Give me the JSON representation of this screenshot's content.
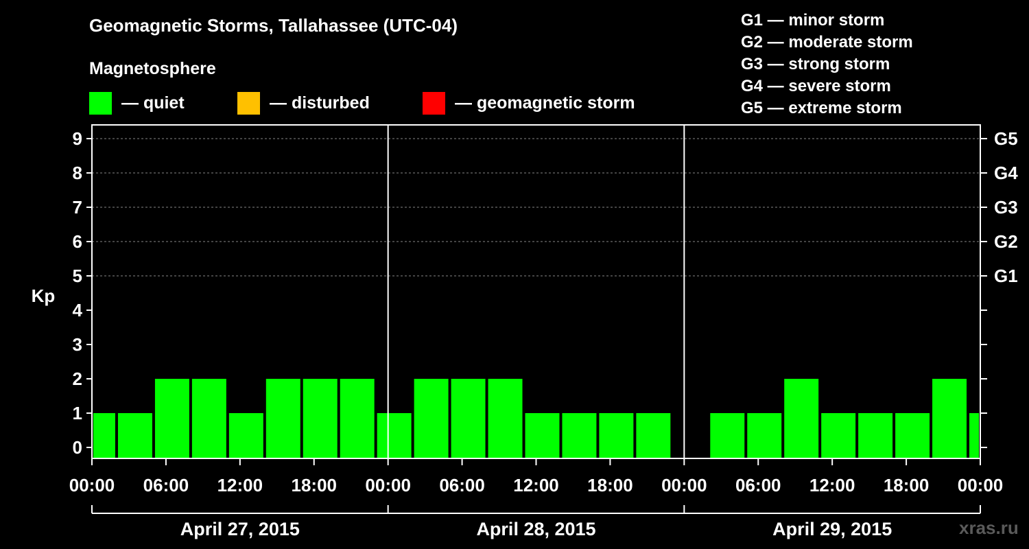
{
  "title": "Geomagnetic Storms, Tallahassee (UTC-04)",
  "subtitle": "Magnetosphere",
  "legend": [
    {
      "label": "— quiet",
      "color": "#00ff00"
    },
    {
      "label": "— disturbed",
      "color": "#ffc000"
    },
    {
      "label": "— geomagnetic storm",
      "color": "#ff0000"
    }
  ],
  "storm_scale": [
    "G1 — minor storm",
    "G2 — moderate storm",
    "G3 — strong storm",
    "G4 — severe storm",
    "G5 — extreme storm"
  ],
  "watermark": "xras.ru",
  "chart_data": {
    "type": "bar",
    "ylabel": "Kp",
    "ylim": [
      0,
      9
    ],
    "yticks": [
      "0",
      "1",
      "2",
      "3",
      "4",
      "5",
      "6",
      "7",
      "8",
      "9"
    ],
    "right_ticks": [
      {
        "kp": 5,
        "label": "G1"
      },
      {
        "kp": 6,
        "label": "G2"
      },
      {
        "kp": 7,
        "label": "G3"
      },
      {
        "kp": 8,
        "label": "G4"
      },
      {
        "kp": 9,
        "label": "G5"
      }
    ],
    "grid_levels": [
      5,
      6,
      7,
      8,
      9
    ],
    "xlim_hours": [
      0,
      72
    ],
    "xticks": [
      {
        "hour": 0,
        "label": "00:00"
      },
      {
        "hour": 6,
        "label": "06:00"
      },
      {
        "hour": 12,
        "label": "12:00"
      },
      {
        "hour": 18,
        "label": "18:00"
      },
      {
        "hour": 24,
        "label": "00:00"
      },
      {
        "hour": 30,
        "label": "06:00"
      },
      {
        "hour": 36,
        "label": "12:00"
      },
      {
        "hour": 42,
        "label": "18:00"
      },
      {
        "hour": 48,
        "label": "00:00"
      },
      {
        "hour": 54,
        "label": "06:00"
      },
      {
        "hour": 60,
        "label": "12:00"
      },
      {
        "hour": 66,
        "label": "18:00"
      },
      {
        "hour": 72,
        "label": "00:00"
      }
    ],
    "days": [
      {
        "label": "April 27, 2015",
        "start": 0,
        "end": 24
      },
      {
        "label": "April 28, 2015",
        "start": 24,
        "end": 48
      },
      {
        "label": "April 29, 2015",
        "start": 48,
        "end": 72
      }
    ],
    "bars": [
      {
        "start": 0,
        "end": 2,
        "kp": 1
      },
      {
        "start": 2,
        "end": 5,
        "kp": 1
      },
      {
        "start": 5,
        "end": 8,
        "kp": 2
      },
      {
        "start": 8,
        "end": 11,
        "kp": 2
      },
      {
        "start": 11,
        "end": 14,
        "kp": 1
      },
      {
        "start": 14,
        "end": 17,
        "kp": 2
      },
      {
        "start": 17,
        "end": 20,
        "kp": 2
      },
      {
        "start": 20,
        "end": 23,
        "kp": 2
      },
      {
        "start": 23,
        "end": 26,
        "kp": 1
      },
      {
        "start": 26,
        "end": 29,
        "kp": 2
      },
      {
        "start": 29,
        "end": 32,
        "kp": 2
      },
      {
        "start": 32,
        "end": 35,
        "kp": 2
      },
      {
        "start": 35,
        "end": 38,
        "kp": 1
      },
      {
        "start": 38,
        "end": 41,
        "kp": 1
      },
      {
        "start": 41,
        "end": 44,
        "kp": 1
      },
      {
        "start": 44,
        "end": 47,
        "kp": 1
      },
      {
        "start": 50,
        "end": 53,
        "kp": 1
      },
      {
        "start": 53,
        "end": 56,
        "kp": 1
      },
      {
        "start": 56,
        "end": 59,
        "kp": 2
      },
      {
        "start": 59,
        "end": 62,
        "kp": 1
      },
      {
        "start": 62,
        "end": 65,
        "kp": 1
      },
      {
        "start": 65,
        "end": 68,
        "kp": 1
      },
      {
        "start": 68,
        "end": 71,
        "kp": 2
      },
      {
        "start": 71,
        "end": 72,
        "kp": 1
      }
    ],
    "bar_color": "#00ff00"
  }
}
